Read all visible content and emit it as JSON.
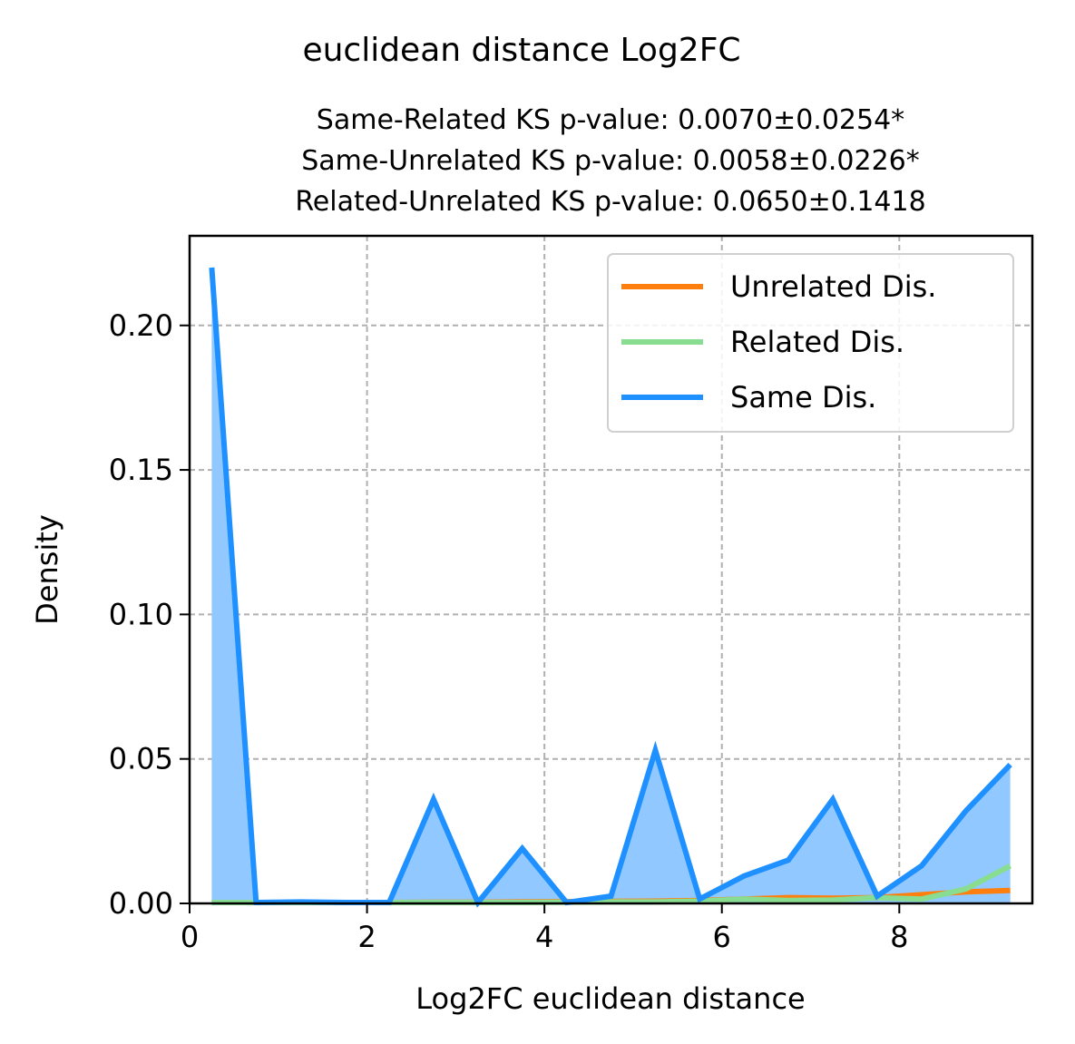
{
  "chart_data": {
    "type": "line",
    "title": "euclidean distance Log2FC",
    "subtitle": [
      "Same-Related KS p-value: 0.0070±0.0254*",
      "Same-Unrelated KS p-value: 0.0058±0.0226*",
      "Related-Unrelated KS p-value: 0.0650±0.1418"
    ],
    "xlabel": "Log2FC euclidean distance",
    "ylabel": "Density",
    "xlim": [
      0,
      9.5
    ],
    "ylim": [
      0,
      0.231
    ],
    "xticks": [
      0,
      2,
      4,
      6,
      8
    ],
    "xtick_labels": [
      "0",
      "2",
      "4",
      "6",
      "8"
    ],
    "yticks": [
      0,
      0.05,
      0.1,
      0.15,
      0.2
    ],
    "ytick_labels": [
      "0.00",
      "0.05",
      "0.10",
      "0.15",
      "0.20"
    ],
    "grid": true,
    "legend_position": "top-right",
    "x": [
      0.25,
      0.75,
      1.25,
      1.75,
      2.25,
      2.75,
      3.25,
      3.75,
      4.25,
      4.75,
      5.25,
      5.75,
      6.25,
      6.75,
      7.25,
      7.75,
      8.25,
      8.75,
      9.25
    ],
    "series": [
      {
        "name": "Unrelated Dis.",
        "color": "#ff7f0e",
        "filled": true,
        "values": [
          0.0003,
          0.0003,
          0.0003,
          0.0003,
          0.0003,
          0.0004,
          0.0004,
          0.0005,
          0.0006,
          0.0007,
          0.0008,
          0.001,
          0.0015,
          0.002,
          0.0018,
          0.002,
          0.003,
          0.004,
          0.0045
        ]
      },
      {
        "name": "Related Dis.",
        "color": "#88dd90",
        "filled": true,
        "values": [
          0.0003,
          0.0003,
          0.0003,
          0.0003,
          0.0003,
          0.0003,
          0.0003,
          0.0003,
          0.0004,
          0.0005,
          0.0005,
          0.0008,
          0.0015,
          0.001,
          0.0012,
          0.002,
          0.0015,
          0.005,
          0.013
        ]
      },
      {
        "name": "Same Dis.",
        "color": "#1e90ff",
        "fill_color": "#90c8ff",
        "filled": true,
        "values": [
          0.22,
          0.0003,
          0.0005,
          0.0003,
          0.0003,
          0.036,
          0.0003,
          0.019,
          0.0003,
          0.0025,
          0.053,
          0.0015,
          0.0095,
          0.015,
          0.036,
          0.0025,
          0.013,
          0.032,
          0.048
        ]
      }
    ]
  }
}
